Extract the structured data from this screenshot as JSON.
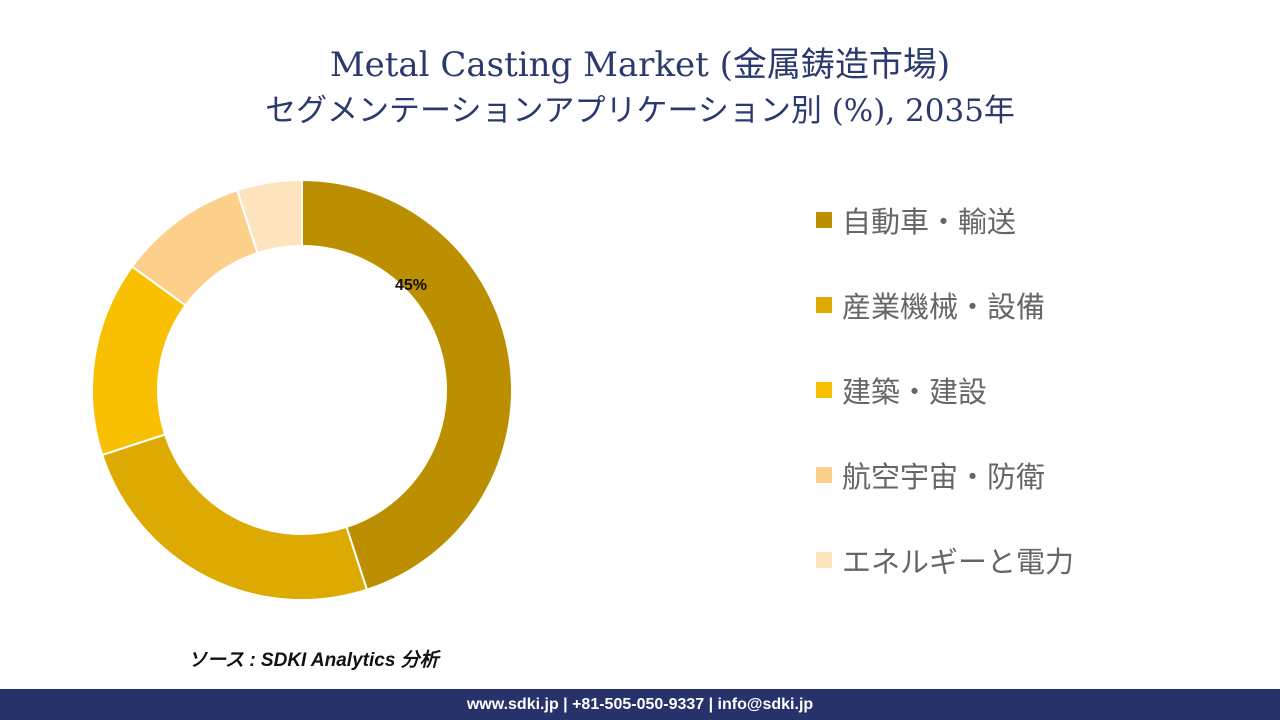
{
  "title": {
    "line1": "Metal Casting Market (金属鋳造市場)",
    "line2": "セグメンテーションアプリケーション別 (%), 2035年"
  },
  "chart_data": {
    "type": "donut",
    "categories": [
      "自動車・輸送",
      "産業機械・設備",
      "建築・建設",
      "航空宇宙・防衛",
      "エネルギーと電力"
    ],
    "values": [
      45,
      25,
      15,
      10,
      5
    ],
    "unit": "%",
    "colors": [
      "#bb8f00",
      "#dcaa00",
      "#f8c000",
      "#fcd08a",
      "#fde4bf"
    ],
    "data_labels": [
      {
        "index": 0,
        "text": "45%"
      }
    ]
  },
  "source": "ソース : SDKI Analytics 分析",
  "footer": "www.sdki.jp | +81-505-050-9337 | info@sdki.jp"
}
